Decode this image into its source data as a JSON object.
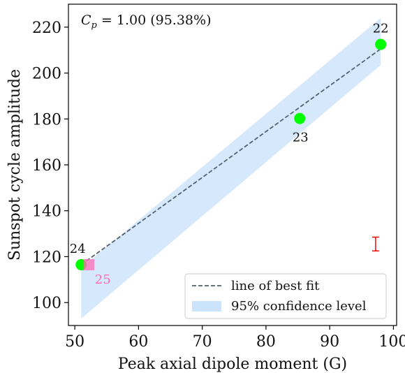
{
  "chart_data": {
    "type": "scatter",
    "xlabel": "Peak axial dipole moment (G)",
    "ylabel": "Sunspot cycle amplitude",
    "xlim": [
      49,
      100.5
    ],
    "ylim": [
      90,
      230
    ],
    "xticks": [
      50,
      60,
      70,
      80,
      90,
      100
    ],
    "yticks": [
      100,
      120,
      140,
      160,
      180,
      200,
      220
    ],
    "grid": false,
    "annotation": {
      "prefix": "C",
      "subscript": "p",
      "text": " = 1.00 (95.38%)"
    },
    "points": [
      {
        "label": "22",
        "x": 98.0,
        "y": 212.5,
        "color": "#00ff00",
        "marker": "circle"
      },
      {
        "label": "23",
        "x": 85.3,
        "y": 180.2,
        "color": "#00ff00",
        "marker": "circle"
      },
      {
        "label": "24",
        "x": 51.0,
        "y": 116.5,
        "color": "#00ff00",
        "marker": "circle"
      }
    ],
    "prediction": {
      "label": "25",
      "x": 52.2,
      "y": 116.5,
      "color": "#ff69b4",
      "marker": "square"
    },
    "best_fit": {
      "x": [
        51.0,
        98.0
      ],
      "y": [
        116.5,
        210.5
      ],
      "color": "#556270"
    },
    "confidence_band": {
      "x": [
        51.0,
        98.0
      ],
      "upper": [
        115.0,
        224.0
      ],
      "lower": [
        93.0,
        203.5
      ],
      "color": "#cce4fb"
    },
    "error_bar": {
      "x": 97.2,
      "y_low": 122.5,
      "y_high": 128.5,
      "color": "#ff0000"
    },
    "legend": {
      "position": "lower-right",
      "entries": [
        {
          "label": "line of best fit",
          "style": "dashed-line",
          "color": "#556270"
        },
        {
          "label": "95% confidence level",
          "style": "patch",
          "color": "#cce4fb"
        }
      ]
    }
  }
}
